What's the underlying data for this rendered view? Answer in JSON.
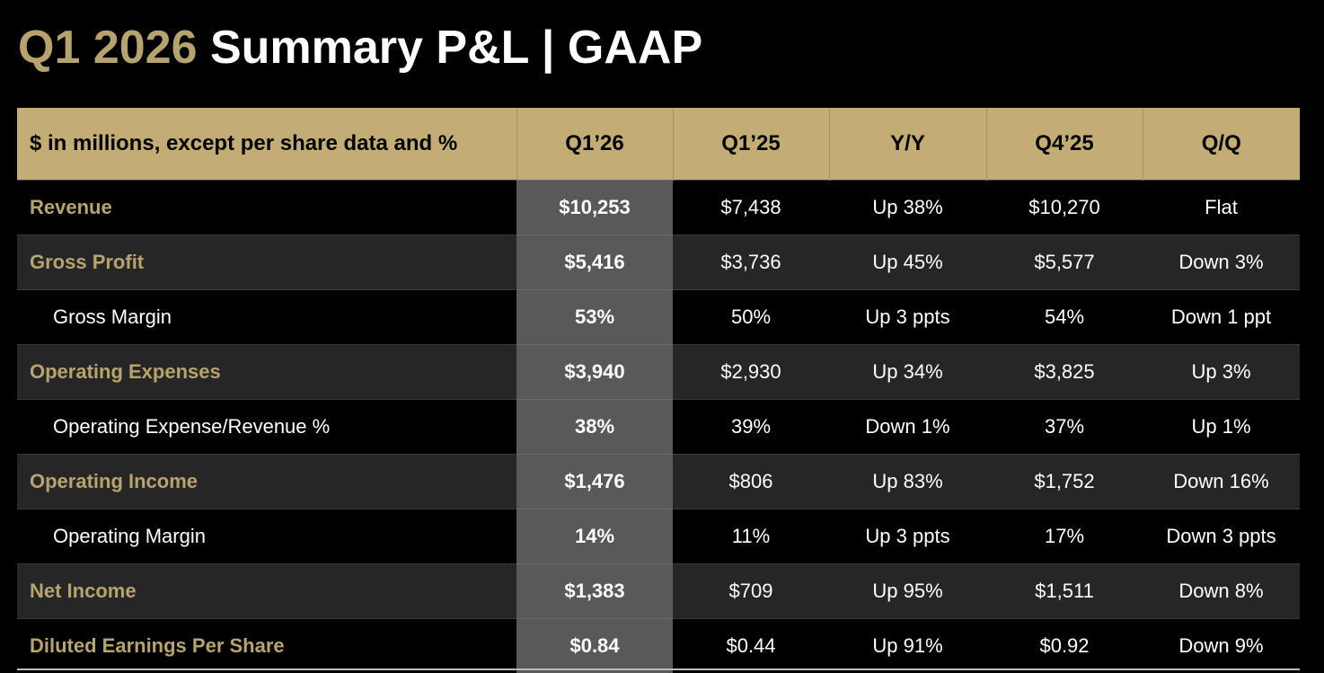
{
  "title": {
    "accent": "Q1 2026",
    "main": "Summary P&L  |  GAAP"
  },
  "table": {
    "headers": [
      "$ in millions, except per share data and %",
      "Q1’26",
      "Q1’25",
      "Y/Y",
      "Q4’25",
      "Q/Q"
    ],
    "rows": [
      {
        "label": "Revenue",
        "type": "major",
        "values": [
          "$10,253",
          "$7,438",
          "Up 38%",
          "$10,270",
          "Flat"
        ]
      },
      {
        "label": "Gross Profit",
        "type": "major",
        "values": [
          "$5,416",
          "$3,736",
          "Up 45%",
          "$5,577",
          "Down 3%"
        ]
      },
      {
        "label": "Gross Margin",
        "type": "sub",
        "values": [
          "53%",
          "50%",
          "Up 3 ppts",
          "54%",
          "Down 1 ppt"
        ]
      },
      {
        "label": "Operating Expenses",
        "type": "major",
        "values": [
          "$3,940",
          "$2,930",
          "Up 34%",
          "$3,825",
          "Up 3%"
        ]
      },
      {
        "label": "Operating Expense/Revenue %",
        "type": "sub",
        "values": [
          "38%",
          "39%",
          "Down 1%",
          "37%",
          "Up 1%"
        ]
      },
      {
        "label": "Operating Income",
        "type": "major",
        "values": [
          "$1,476",
          "$806",
          "Up 83%",
          "$1,752",
          "Down 16%"
        ]
      },
      {
        "label": "Operating Margin",
        "type": "sub",
        "values": [
          "14%",
          "11%",
          "Up 3 ppts",
          "17%",
          "Down 3 ppts"
        ]
      },
      {
        "label": "Net Income",
        "type": "major",
        "values": [
          "$1,383",
          "$709",
          "Up 95%",
          "$1,511",
          "Down 8%"
        ]
      },
      {
        "label": "Diluted Earnings Per Share",
        "type": "major",
        "values": [
          "$0.84",
          "$0.44",
          "Up 91%",
          "$0.92",
          "Down 9%"
        ]
      }
    ]
  },
  "colors": {
    "accent_gold": "#b7a36d",
    "header_gold": "#c3ad75",
    "highlight_column": "#595959",
    "band_dark": "#262626",
    "background": "#000000"
  }
}
